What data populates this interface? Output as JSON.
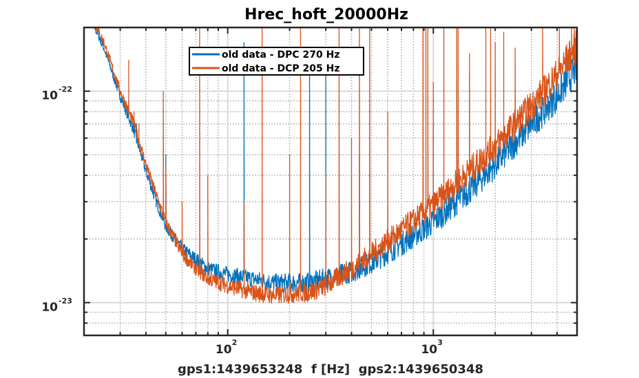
{
  "chart_data": {
    "type": "line",
    "title": "Hrec_hoft_20000Hz",
    "xlabel": "gps1:1439653248  f [Hz]  gps2:1439650348",
    "ylabel": "",
    "xscale": "log",
    "yscale": "log",
    "xlim": [
      20,
      5000
    ],
    "ylim": [
      7e-24,
      2e-22
    ],
    "grid": true,
    "legend_position": "top-center",
    "x_ticks": [
      {
        "value": 100,
        "base": "10",
        "exp": "2"
      },
      {
        "value": 1000,
        "base": "10",
        "exp": "3"
      }
    ],
    "y_ticks": [
      {
        "value": 1e-22,
        "base": "10",
        "exp": "-22"
      },
      {
        "value": 1e-23,
        "base": "10",
        "exp": "-23"
      }
    ],
    "series": [
      {
        "name": "old data - DPC 270 Hz",
        "color": "#0072BD",
        "points": [
          [
            20,
            2.6e-22
          ],
          [
            25,
            1.6e-22
          ],
          [
            30,
            9.5e-23
          ],
          [
            35,
            6.5e-23
          ],
          [
            40,
            4.2e-23
          ],
          [
            45,
            3e-23
          ],
          [
            50,
            2.3e-23
          ],
          [
            60,
            1.8e-23
          ],
          [
            70,
            1.6e-23
          ],
          [
            80,
            1.45e-23
          ],
          [
            100,
            1.36e-23
          ],
          [
            130,
            1.3e-23
          ],
          [
            170,
            1.24e-23
          ],
          [
            200,
            1.24e-23
          ],
          [
            250,
            1.25e-23
          ],
          [
            300,
            1.3e-23
          ],
          [
            400,
            1.4e-23
          ],
          [
            500,
            1.55e-23
          ],
          [
            700,
            1.9e-23
          ],
          [
            1000,
            2.4e-23
          ],
          [
            1500,
            3.4e-23
          ],
          [
            2000,
            4.5e-23
          ],
          [
            3000,
            7e-23
          ],
          [
            4000,
            9.5e-23
          ],
          [
            5000,
            1.3e-22
          ]
        ],
        "spikes": [
          [
            33,
            9e-23
          ],
          [
            36,
            7e-23
          ],
          [
            50,
            5e-23
          ],
          [
            120,
            1.7e-22
          ],
          [
            250,
            1.3e-22
          ],
          [
            300,
            1.3e-22
          ],
          [
            437,
            5e-23
          ],
          [
            1000,
            7e-23
          ],
          [
            1300,
            1.1e-22
          ],
          [
            1500,
            1.2e-22
          ],
          [
            2000,
            8e-23
          ],
          [
            2500,
            6e-23
          ]
        ]
      },
      {
        "name": "old data - DCP 205 Hz",
        "color": "#D95319",
        "points": [
          [
            20,
            2.6e-22
          ],
          [
            25,
            1.7e-22
          ],
          [
            30,
            1e-22
          ],
          [
            35,
            7e-23
          ],
          [
            40,
            4.5e-23
          ],
          [
            45,
            3.2e-23
          ],
          [
            50,
            2.4e-23
          ],
          [
            60,
            1.7e-23
          ],
          [
            70,
            1.45e-23
          ],
          [
            80,
            1.3e-23
          ],
          [
            100,
            1.2e-23
          ],
          [
            130,
            1.12e-23
          ],
          [
            170,
            1.08e-23
          ],
          [
            200,
            1.1e-23
          ],
          [
            250,
            1.12e-23
          ],
          [
            300,
            1.2e-23
          ],
          [
            400,
            1.45e-23
          ],
          [
            500,
            1.7e-23
          ],
          [
            700,
            2.2e-23
          ],
          [
            1000,
            2.9e-23
          ],
          [
            1500,
            4.2e-23
          ],
          [
            2000,
            5.5e-23
          ],
          [
            3000,
            8.5e-23
          ],
          [
            4000,
            1.2e-22
          ],
          [
            5000,
            1.65e-22
          ]
        ],
        "spikes": [
          [
            33,
            1.4e-22
          ],
          [
            35,
            8e-23
          ],
          [
            37,
            7e-23
          ],
          [
            48.6,
            1e-22
          ],
          [
            50,
            4.5e-23
          ],
          [
            60,
            3e-23
          ],
          [
            73,
            2e-22
          ],
          [
            80,
            4e-23
          ],
          [
            120,
            3e-23
          ],
          [
            147,
            2e-22
          ],
          [
            200,
            5e-23
          ],
          [
            226,
            2e-22
          ],
          [
            300,
            4e-23
          ],
          [
            348,
            2e-22
          ],
          [
            400,
            6e-23
          ],
          [
            437,
            2e-22
          ],
          [
            490,
            2e-22
          ],
          [
            600,
            8e-23
          ],
          [
            890,
            2e-22
          ],
          [
            920,
            2e-22
          ],
          [
            940,
            2e-22
          ],
          [
            1000,
            1.1e-22
          ],
          [
            1125,
            2e-22
          ],
          [
            1300,
            2e-22
          ],
          [
            1320,
            2e-22
          ],
          [
            1500,
            1.5e-22
          ],
          [
            1800,
            2e-22
          ],
          [
            1900,
            2e-22
          ],
          [
            2000,
            1.7e-22
          ],
          [
            2200,
            1.9e-22
          ],
          [
            2500,
            1.6e-22
          ],
          [
            3400,
            2e-22
          ],
          [
            4100,
            2e-22
          ],
          [
            4700,
            2e-22
          ],
          [
            4850,
            2e-22
          ],
          [
            5000,
            2e-22
          ]
        ]
      }
    ]
  }
}
